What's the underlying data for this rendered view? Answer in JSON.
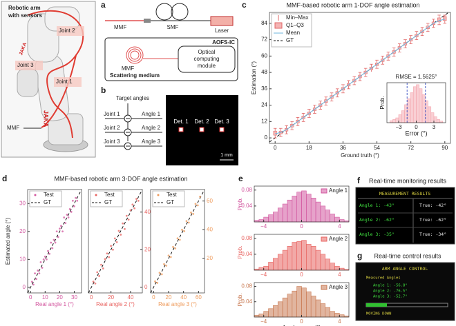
{
  "panel_labels": [
    "a",
    "b",
    "c",
    "d",
    "e",
    "f",
    "g"
  ],
  "photo": {
    "title_lines": [
      "Robotic arm",
      "with sensors"
    ],
    "joints": [
      "Joint 2",
      "Joint 3",
      "Joint 1"
    ],
    "brand": "JAKA",
    "fiber": "MMF"
  },
  "panel_a": {
    "mmf": "MMF",
    "smf": "SMF",
    "laser": "Laser",
    "chip": "AOFS-IC",
    "chip_fiber": "MMF",
    "medium": "Scattering medium",
    "module_lines": [
      "Optical",
      "computing",
      "module"
    ]
  },
  "panel_b": {
    "targets": "Target angles",
    "joints": [
      "Joint 1",
      "Joint 2",
      "Joint 3"
    ],
    "angles": [
      "Angle 1",
      "Angle 2",
      "Angle 3"
    ],
    "detectors": [
      "Det. 1",
      "Det. 2",
      "Det. 3"
    ],
    "scale": "1 mm"
  },
  "panel_d": {
    "title": "MMF-based robotic arm 3-DOF angle estimation",
    "ylabel": "Estimated angle (°)"
  },
  "panel_f": {
    "title": "Real-time monitoring results",
    "header": "MEASUREMENT RESULTS",
    "rows": [
      [
        "Angle 1: -43°",
        "True: -42°"
      ],
      [
        "Angle 2: -62°",
        "True: -62°"
      ],
      [
        "Angle 3: -35°",
        "True: -34°"
      ]
    ]
  },
  "panel_g": {
    "title": "Real-time control results",
    "header": "ARM ANGLE CONTROL",
    "subheader": "Measured Angles",
    "rows": [
      "Angle 1: -56.8°",
      "Angle 2: -76.5°",
      "Angle 3: -52.7°"
    ],
    "status": "MOVING DOWN"
  },
  "chart_data": [
    {
      "type": "box",
      "title": "MMF-based robotic arm 1-DOF angle estimation",
      "xlabel": "Ground truth (°)",
      "ylabel": "Estimation (°)",
      "x": [
        0,
        3,
        6,
        9,
        12,
        15,
        18,
        21,
        24,
        27,
        30,
        33,
        36,
        39,
        42,
        45,
        48,
        51,
        54,
        57,
        60,
        63,
        66,
        69,
        72,
        75,
        78,
        81,
        84,
        87,
        90
      ],
      "min": [
        0,
        1,
        3,
        6,
        9,
        12,
        15,
        18,
        21,
        24,
        27,
        30,
        33,
        36,
        39,
        42,
        45,
        48,
        51,
        54,
        57,
        60,
        63,
        66,
        69,
        72,
        75,
        78,
        81,
        83,
        84
      ],
      "q1": [
        2,
        3,
        5,
        8,
        11,
        14,
        17,
        20,
        23,
        26,
        29,
        32,
        35,
        38,
        41,
        44,
        47,
        50,
        53,
        56,
        59,
        62,
        65,
        68,
        71,
        74,
        77,
        80,
        83,
        85,
        86
      ],
      "mean": [
        3,
        4,
        6,
        9,
        12,
        15,
        18,
        21,
        24,
        27,
        30,
        33,
        36,
        39,
        42,
        45,
        48,
        51,
        54,
        57,
        60,
        63,
        66,
        69,
        72,
        75,
        78,
        81,
        84,
        86,
        87
      ],
      "q3": [
        5,
        5,
        7,
        10,
        13,
        16,
        19,
        22,
        25,
        28,
        31,
        34,
        37,
        40,
        43,
        46,
        49,
        52,
        55,
        58,
        61,
        64,
        67,
        70,
        73,
        76,
        79,
        82,
        85,
        88,
        89
      ],
      "max": [
        7,
        7,
        9,
        12,
        15,
        18,
        21,
        24,
        27,
        30,
        33,
        36,
        39,
        42,
        45,
        48,
        51,
        54,
        57,
        60,
        63,
        66,
        69,
        72,
        75,
        78,
        81,
        84,
        87,
        90,
        90
      ],
      "legend": [
        "Min–Max",
        "Q1–Q3",
        "Mean",
        "GT"
      ],
      "box_color": "#f4b4b4",
      "whisker_color": "#e06464",
      "mean_color": "#6cb4dc",
      "xlim": [
        -3,
        93
      ],
      "ylim": [
        -4,
        92
      ],
      "xticks": [
        0,
        18,
        36,
        54,
        72,
        90
      ],
      "yticks": [
        0,
        12,
        24,
        36,
        48,
        60,
        72,
        84
      ]
    },
    {
      "type": "histogram",
      "annotation": "RMSE = 1.5625°",
      "xlabel": "Error (°)",
      "ylabel": "Prob.",
      "bins": [
        -4.5,
        -4,
        -3.5,
        -3,
        -2.5,
        -2,
        -1.5,
        -1,
        -0.5,
        0,
        0.5,
        1,
        1.5,
        2,
        2.5,
        3,
        3.5,
        4,
        4.5
      ],
      "values": [
        0.005,
        0.008,
        0.012,
        0.02,
        0.03,
        0.045,
        0.06,
        0.075,
        0.09,
        0.095,
        0.085,
        0.07,
        0.055,
        0.04,
        0.025,
        0.015,
        0.008,
        0.004
      ],
      "color": "#f4a8b0",
      "vlines": [
        -1.5625,
        1.5625
      ],
      "vline_color": "#4a60c8",
      "xlim": [
        -5,
        5
      ],
      "ylim": [
        0,
        0.1
      ],
      "xticks": [
        {
          "value": -3,
          "label": "−3"
        },
        0,
        3
      ]
    },
    {
      "type": "scatter",
      "xlabel": "Real angle 1 (°)",
      "yaxis": "left",
      "gt_name": "GT",
      "series": [
        {
          "name": "Test",
          "color": "#d2559e",
          "x": [
            1,
            2,
            3,
            4,
            5,
            6,
            7,
            8,
            9,
            10,
            11,
            12,
            13,
            14,
            15,
            16,
            17,
            18,
            19,
            20,
            21,
            22,
            23,
            24,
            25,
            26,
            27,
            28,
            29,
            30,
            31,
            32
          ],
          "values": [
            2,
            1,
            5,
            3,
            6,
            5,
            9,
            7,
            10,
            11,
            10,
            13,
            12,
            16,
            14,
            17,
            16,
            20,
            18,
            21,
            22,
            20,
            25,
            23,
            26,
            25,
            28,
            27,
            31,
            29,
            32,
            31
          ]
        }
      ],
      "xlim": [
        -2,
        35
      ],
      "ylim": [
        -2,
        35
      ],
      "xticks": [
        0,
        10,
        20,
        30
      ],
      "yticks": [
        0,
        10,
        20,
        30
      ]
    },
    {
      "type": "scatter",
      "xlabel": "Real angle 2 (°)",
      "yaxis": "right",
      "gt_name": "GT",
      "series": [
        {
          "name": "Test",
          "color": "#e8625f",
          "x": [
            2,
            4,
            6,
            8,
            10,
            12,
            14,
            16,
            18,
            20,
            22,
            24,
            26,
            28,
            30,
            32,
            34,
            36,
            38,
            40,
            42,
            44,
            46,
            48
          ],
          "values": [
            3,
            2,
            8,
            6,
            12,
            10,
            15,
            18,
            16,
            22,
            20,
            26,
            24,
            30,
            28,
            34,
            31,
            38,
            36,
            41,
            44,
            42,
            47,
            46
          ]
        }
      ],
      "xlim": [
        -3,
        52
      ],
      "ylim": [
        -3,
        52
      ],
      "xticks": [
        0,
        20,
        40
      ],
      "yticks": [
        0,
        20,
        40
      ]
    },
    {
      "type": "scatter",
      "xlabel": "Real angle 3 (°)",
      "yaxis": "right",
      "gt_name": "GT",
      "series": [
        {
          "name": "Test",
          "color": "#ee9a5a",
          "x": [
            2,
            5,
            8,
            11,
            14,
            17,
            20,
            23,
            26,
            29,
            32,
            35,
            38,
            41,
            44,
            47,
            50,
            53,
            56,
            59,
            62
          ],
          "values": [
            4,
            3,
            10,
            9,
            16,
            15,
            22,
            21,
            28,
            27,
            34,
            33,
            40,
            39,
            46,
            45,
            52,
            51,
            58,
            57,
            63
          ]
        }
      ],
      "xlim": [
        -4,
        68
      ],
      "ylim": [
        -4,
        68
      ],
      "xticks": [
        0,
        20,
        40,
        60
      ],
      "yticks": [
        20,
        40,
        60
      ]
    },
    {
      "type": "histogram",
      "name": "Angle 1",
      "ylabel": "Prob.",
      "color": "#d2559e",
      "bins": [
        -5,
        -4.5,
        -4,
        -3.5,
        -3,
        -2.5,
        -2,
        -1.5,
        -1,
        -0.5,
        0,
        0.5,
        1,
        1.5,
        2,
        2.5,
        3,
        3.5,
        4,
        4.5,
        5
      ],
      "values": [
        0.004,
        0.006,
        0.012,
        0.018,
        0.025,
        0.035,
        0.045,
        0.055,
        0.065,
        0.075,
        0.078,
        0.07,
        0.06,
        0.05,
        0.04,
        0.03,
        0.02,
        0.012,
        0.006,
        0.003
      ],
      "xlim": [
        -5,
        5
      ],
      "ylim": [
        0,
        0.09
      ],
      "xticks": [
        {
          "value": -4,
          "label": "−4"
        },
        0,
        4
      ],
      "yticks": [
        0.04,
        0.08
      ]
    },
    {
      "type": "histogram",
      "name": "Angle 2",
      "ylabel": "Prob.",
      "color": "#e8625f",
      "bins": [
        -5,
        -4.5,
        -4,
        -3.5,
        -3,
        -2.5,
        -2,
        -1.5,
        -1,
        -0.5,
        0,
        0.5,
        1,
        1.5,
        2,
        2.5,
        3,
        3.5,
        4,
        4.5,
        5
      ],
      "values": [
        0.003,
        0.007,
        0.01,
        0.02,
        0.03,
        0.04,
        0.05,
        0.06,
        0.07,
        0.072,
        0.075,
        0.065,
        0.06,
        0.05,
        0.04,
        0.028,
        0.018,
        0.01,
        0.005,
        0.002
      ],
      "xlim": [
        -5,
        5
      ],
      "ylim": [
        0,
        0.09
      ],
      "xticks": [
        {
          "value": -4,
          "label": "−4"
        },
        0,
        4
      ],
      "yticks": [
        0.04,
        0.08
      ]
    },
    {
      "type": "histogram",
      "name": "Angle 3",
      "ylabel": "Prob.",
      "xlabel": "Angle error (°)",
      "color": "#c87850",
      "bins": [
        -5,
        -4.5,
        -4,
        -3.5,
        -3,
        -2.5,
        -2,
        -1.5,
        -1,
        -0.5,
        0,
        0.5,
        1,
        1.5,
        2,
        2.5,
        3,
        3.5,
        4,
        4.5,
        5
      ],
      "values": [
        0.005,
        0.008,
        0.015,
        0.022,
        0.03,
        0.04,
        0.05,
        0.06,
        0.068,
        0.08,
        0.076,
        0.066,
        0.055,
        0.045,
        0.035,
        0.025,
        0.015,
        0.01,
        0.006,
        0.003
      ],
      "xlim": [
        -5,
        5
      ],
      "ylim": [
        0,
        0.09
      ],
      "xticks": [
        {
          "value": -4,
          "label": "−4"
        },
        0,
        4
      ],
      "yticks": [
        0.04,
        0.08
      ]
    }
  ]
}
